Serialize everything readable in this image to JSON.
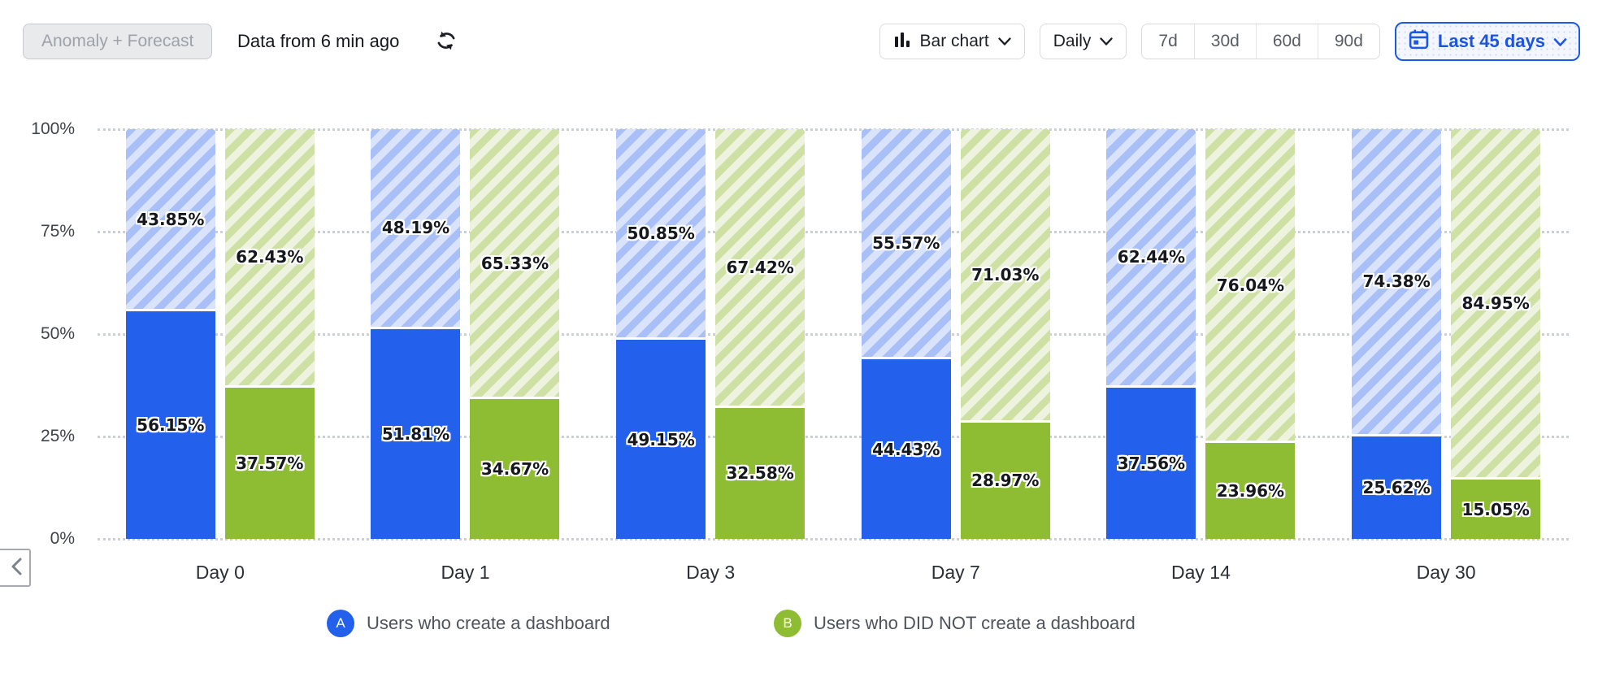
{
  "toolbar": {
    "anomaly_forecast_label": "Anomaly + Forecast",
    "data_freshness": "Data from 6 min ago",
    "refresh_icon": "refresh-icon",
    "chart_type": {
      "icon": "bar-chart-icon",
      "label": "Bar chart"
    },
    "granularity": {
      "label": "Daily"
    },
    "range_presets": [
      "7d",
      "30d",
      "60d",
      "90d"
    ],
    "date_range": {
      "icon": "calendar-icon",
      "label": "Last 45 days"
    }
  },
  "colors": {
    "series_a_solid": "#2361ec",
    "series_a_hatch_bg": "#d9e3fb",
    "series_a_hatch_stripe": "#a9bff7",
    "series_b_solid": "#8ebc33",
    "series_b_hatch_bg": "#edf3de",
    "series_b_hatch_stripe": "#cfe0a5",
    "accent_blue": "#1d57e6",
    "gridline": "#c8d1da"
  },
  "chart_data": {
    "type": "bar",
    "subtype": "stacked-percent-retention",
    "title": "",
    "xlabel": "",
    "ylabel": "",
    "categories": [
      "Day 0",
      "Day 1",
      "Day 3",
      "Day 7",
      "Day 14",
      "Day 30"
    ],
    "series": [
      {
        "id": "A",
        "name": "Users who create a dashboard",
        "solid_values": [
          56.15,
          51.81,
          49.15,
          44.43,
          37.56,
          25.62
        ],
        "solid_labels": [
          "56.15%",
          "51.81%",
          "49.15%",
          "44.43%",
          "37.56%",
          "25.62%"
        ],
        "hatched_values": [
          43.85,
          48.19,
          50.85,
          55.57,
          62.44,
          74.38
        ],
        "hatched_labels": [
          "43.85%",
          "48.19%",
          "50.85%",
          "55.57%",
          "62.44%",
          "74.38%"
        ]
      },
      {
        "id": "B",
        "name": "Users who DID NOT create a dashboard",
        "solid_values": [
          37.57,
          34.67,
          32.58,
          28.97,
          23.96,
          15.05
        ],
        "solid_labels": [
          "37.57%",
          "34.67%",
          "32.58%",
          "28.97%",
          "23.96%",
          "15.05%"
        ],
        "hatched_values": [
          62.43,
          65.33,
          67.42,
          71.03,
          76.04,
          84.95
        ],
        "hatched_labels": [
          "62.43%",
          "65.33%",
          "67.42%",
          "71.03%",
          "76.04%",
          "84.95%"
        ]
      }
    ],
    "ylim": [
      0,
      100
    ],
    "y_ticks": [
      "100%",
      "75%",
      "50%",
      "25%",
      "0%"
    ],
    "y_tick_values": [
      100,
      75,
      50,
      25,
      0
    ],
    "grid": "dotted-horizontal",
    "legend_position": "bottom"
  },
  "legend": {
    "items": [
      {
        "badge": "A",
        "label": "Users who create a dashboard"
      },
      {
        "badge": "B",
        "label": "Users who DID NOT create a dashboard"
      }
    ]
  },
  "pager": {
    "prev_icon": "chevron-left-icon"
  }
}
